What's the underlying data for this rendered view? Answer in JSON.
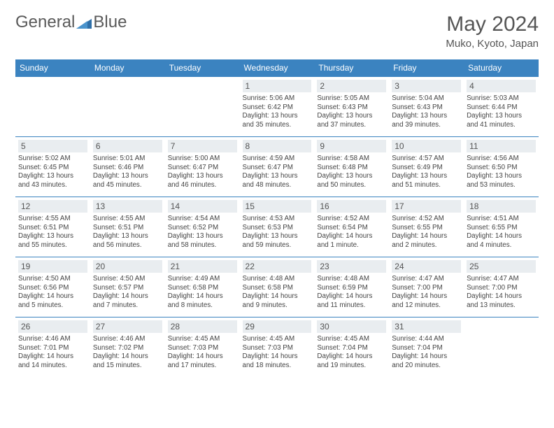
{
  "logo": {
    "general": "General",
    "blue": "Blue"
  },
  "title": "May 2024",
  "location": "Muko, Kyoto, Japan",
  "colors": {
    "header_bg": "#3b83c0",
    "header_text": "#ffffff",
    "daynum_bg": "#e9edf0",
    "text": "#444444",
    "border": "#3b83c0"
  },
  "day_headers": [
    "Sunday",
    "Monday",
    "Tuesday",
    "Wednesday",
    "Thursday",
    "Friday",
    "Saturday"
  ],
  "weeks": [
    [
      null,
      null,
      null,
      {
        "n": "1",
        "sr": "Sunrise: 5:06 AM",
        "ss": "Sunset: 6:42 PM",
        "d1": "Daylight: 13 hours",
        "d2": "and 35 minutes."
      },
      {
        "n": "2",
        "sr": "Sunrise: 5:05 AM",
        "ss": "Sunset: 6:43 PM",
        "d1": "Daylight: 13 hours",
        "d2": "and 37 minutes."
      },
      {
        "n": "3",
        "sr": "Sunrise: 5:04 AM",
        "ss": "Sunset: 6:43 PM",
        "d1": "Daylight: 13 hours",
        "d2": "and 39 minutes."
      },
      {
        "n": "4",
        "sr": "Sunrise: 5:03 AM",
        "ss": "Sunset: 6:44 PM",
        "d1": "Daylight: 13 hours",
        "d2": "and 41 minutes."
      }
    ],
    [
      {
        "n": "5",
        "sr": "Sunrise: 5:02 AM",
        "ss": "Sunset: 6:45 PM",
        "d1": "Daylight: 13 hours",
        "d2": "and 43 minutes."
      },
      {
        "n": "6",
        "sr": "Sunrise: 5:01 AM",
        "ss": "Sunset: 6:46 PM",
        "d1": "Daylight: 13 hours",
        "d2": "and 45 minutes."
      },
      {
        "n": "7",
        "sr": "Sunrise: 5:00 AM",
        "ss": "Sunset: 6:47 PM",
        "d1": "Daylight: 13 hours",
        "d2": "and 46 minutes."
      },
      {
        "n": "8",
        "sr": "Sunrise: 4:59 AM",
        "ss": "Sunset: 6:47 PM",
        "d1": "Daylight: 13 hours",
        "d2": "and 48 minutes."
      },
      {
        "n": "9",
        "sr": "Sunrise: 4:58 AM",
        "ss": "Sunset: 6:48 PM",
        "d1": "Daylight: 13 hours",
        "d2": "and 50 minutes."
      },
      {
        "n": "10",
        "sr": "Sunrise: 4:57 AM",
        "ss": "Sunset: 6:49 PM",
        "d1": "Daylight: 13 hours",
        "d2": "and 51 minutes."
      },
      {
        "n": "11",
        "sr": "Sunrise: 4:56 AM",
        "ss": "Sunset: 6:50 PM",
        "d1": "Daylight: 13 hours",
        "d2": "and 53 minutes."
      }
    ],
    [
      {
        "n": "12",
        "sr": "Sunrise: 4:55 AM",
        "ss": "Sunset: 6:51 PM",
        "d1": "Daylight: 13 hours",
        "d2": "and 55 minutes."
      },
      {
        "n": "13",
        "sr": "Sunrise: 4:55 AM",
        "ss": "Sunset: 6:51 PM",
        "d1": "Daylight: 13 hours",
        "d2": "and 56 minutes."
      },
      {
        "n": "14",
        "sr": "Sunrise: 4:54 AM",
        "ss": "Sunset: 6:52 PM",
        "d1": "Daylight: 13 hours",
        "d2": "and 58 minutes."
      },
      {
        "n": "15",
        "sr": "Sunrise: 4:53 AM",
        "ss": "Sunset: 6:53 PM",
        "d1": "Daylight: 13 hours",
        "d2": "and 59 minutes."
      },
      {
        "n": "16",
        "sr": "Sunrise: 4:52 AM",
        "ss": "Sunset: 6:54 PM",
        "d1": "Daylight: 14 hours",
        "d2": "and 1 minute."
      },
      {
        "n": "17",
        "sr": "Sunrise: 4:52 AM",
        "ss": "Sunset: 6:55 PM",
        "d1": "Daylight: 14 hours",
        "d2": "and 2 minutes."
      },
      {
        "n": "18",
        "sr": "Sunrise: 4:51 AM",
        "ss": "Sunset: 6:55 PM",
        "d1": "Daylight: 14 hours",
        "d2": "and 4 minutes."
      }
    ],
    [
      {
        "n": "19",
        "sr": "Sunrise: 4:50 AM",
        "ss": "Sunset: 6:56 PM",
        "d1": "Daylight: 14 hours",
        "d2": "and 5 minutes."
      },
      {
        "n": "20",
        "sr": "Sunrise: 4:50 AM",
        "ss": "Sunset: 6:57 PM",
        "d1": "Daylight: 14 hours",
        "d2": "and 7 minutes."
      },
      {
        "n": "21",
        "sr": "Sunrise: 4:49 AM",
        "ss": "Sunset: 6:58 PM",
        "d1": "Daylight: 14 hours",
        "d2": "and 8 minutes."
      },
      {
        "n": "22",
        "sr": "Sunrise: 4:48 AM",
        "ss": "Sunset: 6:58 PM",
        "d1": "Daylight: 14 hours",
        "d2": "and 9 minutes."
      },
      {
        "n": "23",
        "sr": "Sunrise: 4:48 AM",
        "ss": "Sunset: 6:59 PM",
        "d1": "Daylight: 14 hours",
        "d2": "and 11 minutes."
      },
      {
        "n": "24",
        "sr": "Sunrise: 4:47 AM",
        "ss": "Sunset: 7:00 PM",
        "d1": "Daylight: 14 hours",
        "d2": "and 12 minutes."
      },
      {
        "n": "25",
        "sr": "Sunrise: 4:47 AM",
        "ss": "Sunset: 7:00 PM",
        "d1": "Daylight: 14 hours",
        "d2": "and 13 minutes."
      }
    ],
    [
      {
        "n": "26",
        "sr": "Sunrise: 4:46 AM",
        "ss": "Sunset: 7:01 PM",
        "d1": "Daylight: 14 hours",
        "d2": "and 14 minutes."
      },
      {
        "n": "27",
        "sr": "Sunrise: 4:46 AM",
        "ss": "Sunset: 7:02 PM",
        "d1": "Daylight: 14 hours",
        "d2": "and 15 minutes."
      },
      {
        "n": "28",
        "sr": "Sunrise: 4:45 AM",
        "ss": "Sunset: 7:03 PM",
        "d1": "Daylight: 14 hours",
        "d2": "and 17 minutes."
      },
      {
        "n": "29",
        "sr": "Sunrise: 4:45 AM",
        "ss": "Sunset: 7:03 PM",
        "d1": "Daylight: 14 hours",
        "d2": "and 18 minutes."
      },
      {
        "n": "30",
        "sr": "Sunrise: 4:45 AM",
        "ss": "Sunset: 7:04 PM",
        "d1": "Daylight: 14 hours",
        "d2": "and 19 minutes."
      },
      {
        "n": "31",
        "sr": "Sunrise: 4:44 AM",
        "ss": "Sunset: 7:04 PM",
        "d1": "Daylight: 14 hours",
        "d2": "and 20 minutes."
      },
      null
    ]
  ]
}
